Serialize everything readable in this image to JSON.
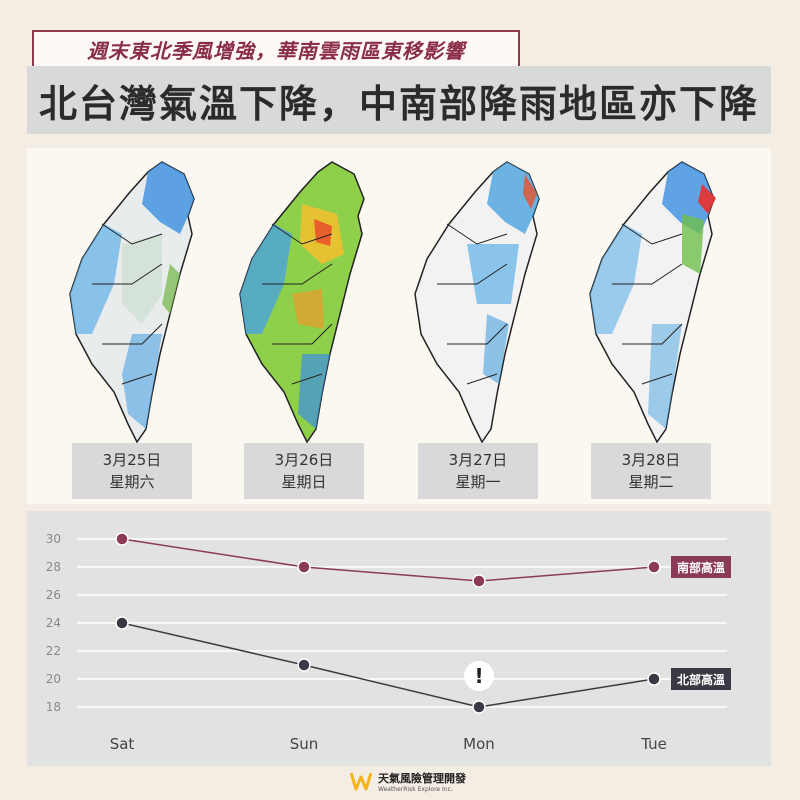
{
  "header": {
    "subtitle": "週末東北季風增強，華南雲雨區東移影響",
    "title": "北台灣氣溫下降，中南部降雨地區亦下降"
  },
  "maps": [
    {
      "date": "3月25日",
      "weekday": "星期六"
    },
    {
      "date": "3月26日",
      "weekday": "星期日"
    },
    {
      "date": "3月27日",
      "weekday": "星期一"
    },
    {
      "date": "3月28日",
      "weekday": "星期二"
    }
  ],
  "chart_data": {
    "type": "line",
    "categories": [
      "Sat",
      "Sun",
      "Mon",
      "Tue"
    ],
    "yticks": [
      18,
      20,
      22,
      24,
      26,
      28,
      30
    ],
    "ylim": [
      17,
      31
    ],
    "grid": true,
    "series": [
      {
        "name": "南部高溫",
        "values": [
          30,
          28,
          27,
          28
        ],
        "color": "#8a3a55"
      },
      {
        "name": "北部高溫",
        "values": [
          24,
          21,
          18,
          20
        ],
        "color": "#3a3a44"
      }
    ],
    "annotations": [
      {
        "category": "Mon",
        "text": "!"
      }
    ]
  },
  "footer": {
    "logo_cn": "天氣風險管理開發",
    "logo_en": "WeatherRisk Explore Inc."
  },
  "colors": {
    "accent": "#8a2e48",
    "north": "#3a3a44",
    "south": "#8a3a55"
  }
}
